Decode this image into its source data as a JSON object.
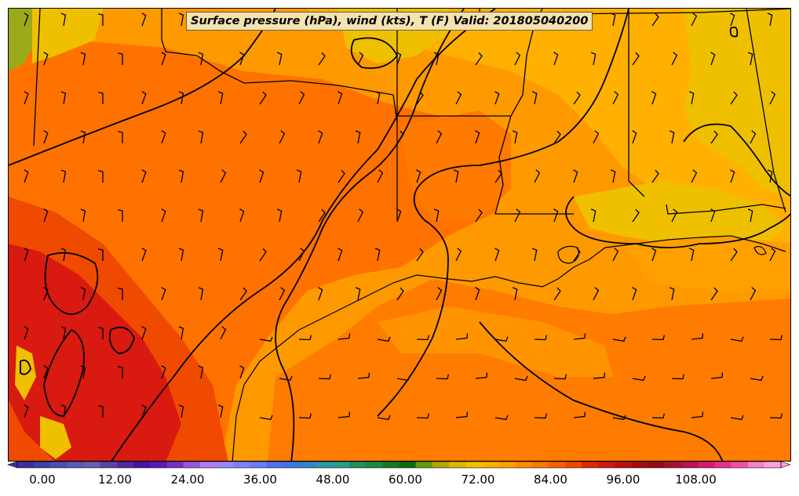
{
  "title": "Surface pressure (hPa), wind (kts), T (F) Valid: 201805040200",
  "colorbar": {
    "tick_labels": [
      "0.00",
      "12.00",
      "24.00",
      "36.00",
      "48.00",
      "60.00",
      "72.00",
      "84.00",
      "96.00",
      "108.00"
    ],
    "colors": [
      "#3a2fa0",
      "#3f3fa8",
      "#4a4fb0",
      "#5a5ab8",
      "#6660b0",
      "#5d43a6",
      "#4f2aa0",
      "#4a12a8",
      "#5c1ab8",
      "#7a2ec8",
      "#9a55e0",
      "#b080f0",
      "#9a88ff",
      "#7f82ff",
      "#6a7cff",
      "#4f70f0",
      "#3a78e0",
      "#3485c8",
      "#2f95a8",
      "#2a9e88",
      "#228f5a",
      "#1a8a40",
      "#157a25",
      "#0e6a10",
      "#5e9e0a",
      "#b0a800",
      "#d8b800",
      "#f0c000",
      "#f8b000",
      "#ffa000",
      "#ff8c00",
      "#ff7800",
      "#f86000",
      "#ef4a00",
      "#e02800",
      "#d01a10",
      "#bf1010",
      "#a80a0a",
      "#960a1a",
      "#a81030",
      "#c01050",
      "#d81a70",
      "#e83090",
      "#f050a8",
      "#f880c8",
      "#ffa0e0"
    ]
  },
  "map": {
    "fill_colors": {
      "base": "#ff9900",
      "warm": "#ff6e00",
      "hot": "#f04a00",
      "very_hot": "#d81810",
      "cool": "#ffb300",
      "cooler": "#eec200",
      "green": "#9aaa18",
      "water": "#ff7a00"
    }
  }
}
